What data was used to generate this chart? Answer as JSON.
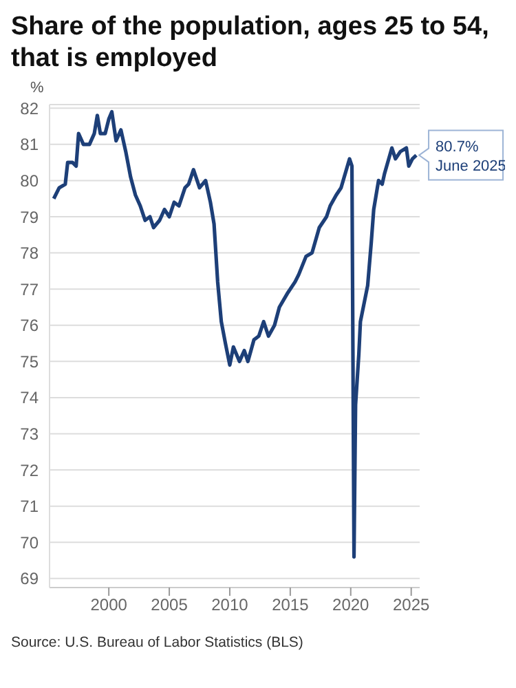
{
  "chart_data": {
    "type": "line",
    "title": "Share of the population, ages 25 to 54, that is employed",
    "ylabel": "%",
    "color": "#1d3f78",
    "x": [
      1995.45,
      1995.9,
      1996.4,
      1996.6,
      1997.0,
      1997.3,
      1997.5,
      1997.9,
      1998.4,
      1998.8,
      1999.05,
      1999.3,
      1999.7,
      2000.0,
      2000.25,
      2000.6,
      2001.0,
      2001.4,
      2001.8,
      2002.2,
      2002.6,
      2003.0,
      2003.4,
      2003.7,
      2004.2,
      2004.6,
      2005.0,
      2005.4,
      2005.8,
      2006.3,
      2006.6,
      2007.0,
      2007.5,
      2008.0,
      2008.4,
      2008.7,
      2009.0,
      2009.3,
      2009.64,
      2010.0,
      2010.3,
      2010.8,
      2011.2,
      2011.5,
      2012.0,
      2012.4,
      2012.8,
      2013.2,
      2013.7,
      2014.1,
      2014.8,
      2015.4,
      2015.7,
      2016.3,
      2016.8,
      2017.4,
      2018.0,
      2018.3,
      2018.8,
      2019.2,
      2019.55,
      2019.9,
      2020.1,
      2020.27,
      2020.4,
      2020.67,
      2020.8,
      2021.4,
      2021.7,
      2021.9,
      2022.3,
      2022.6,
      2022.8,
      2023.4,
      2023.7,
      2024.1,
      2024.6,
      2024.8,
      2025.1,
      2025.42
    ],
    "values": [
      79.5,
      79.8,
      79.9,
      80.5,
      80.5,
      80.4,
      81.3,
      81.0,
      81.0,
      81.3,
      81.8,
      81.3,
      81.3,
      81.7,
      81.9,
      81.1,
      81.4,
      80.8,
      80.1,
      79.6,
      79.3,
      78.9,
      79.0,
      78.7,
      78.9,
      79.2,
      79.0,
      79.4,
      79.3,
      79.8,
      79.9,
      80.3,
      79.8,
      80.0,
      79.4,
      78.8,
      77.2,
      76.1,
      75.5,
      74.9,
      75.4,
      75.0,
      75.3,
      75.0,
      75.6,
      75.7,
      76.1,
      75.7,
      76.0,
      76.5,
      76.9,
      77.2,
      77.4,
      77.9,
      78.0,
      78.7,
      79.0,
      79.3,
      79.6,
      79.8,
      80.2,
      80.6,
      80.4,
      69.6,
      73.8,
      75.2,
      76.1,
      77.1,
      78.3,
      79.2,
      80.0,
      79.9,
      80.2,
      80.9,
      80.6,
      80.8,
      80.9,
      80.4,
      80.6,
      80.7
    ],
    "xlim": [
      1995.1,
      2025.7
    ],
    "xticks": [
      2000,
      2005,
      2010,
      2015,
      2020,
      2025
    ],
    "ylim": [
      68.75,
      82.1
    ],
    "yticks": [
      69,
      70,
      71,
      72,
      73,
      74,
      75,
      76,
      77,
      78,
      79,
      80,
      81,
      82
    ],
    "grid": "y",
    "annotations": [
      {
        "text": "80.7%\nJune 2025",
        "x": 2025.42,
        "y": 80.7
      },
      "Source: U.S. Bureau of Labor Statistics (BLS)"
    ]
  }
}
